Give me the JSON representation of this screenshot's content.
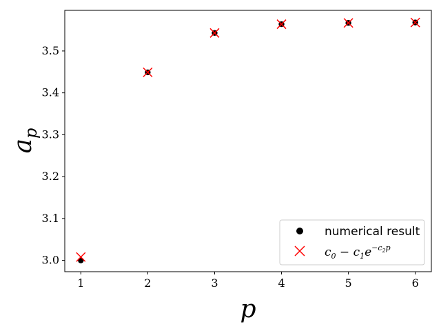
{
  "chart_data": {
    "type": "scatter",
    "xlabel": "p",
    "ylabel_base": "a",
    "ylabel_sub": "p",
    "xlim": [
      0.76,
      6.24
    ],
    "ylim": [
      2.973,
      3.597
    ],
    "xticks": [
      1,
      2,
      3,
      4,
      5,
      6
    ],
    "yticks": [
      3.0,
      3.1,
      3.2,
      3.3,
      3.4,
      3.5
    ],
    "ytick_labels": [
      "3.0",
      "3.1",
      "3.2",
      "3.3",
      "3.4",
      "3.5"
    ],
    "grid": false,
    "legend_position": "bottom-right",
    "series": [
      {
        "name": "numerical result",
        "marker": "circle",
        "color": "#000000",
        "x": [
          1,
          2,
          3,
          4,
          5,
          6
        ],
        "y": [
          3.0,
          3.449,
          3.543,
          3.564,
          3.567,
          3.568
        ]
      },
      {
        "name_parts": [
          "c",
          "0",
          " − c",
          "1",
          "e",
          "−c",
          "2",
          "p"
        ],
        "marker": "x",
        "color": "#ff0000",
        "x": [
          1,
          2,
          3,
          4,
          5,
          6
        ],
        "y": [
          3.008,
          3.449,
          3.543,
          3.564,
          3.567,
          3.568
        ]
      }
    ]
  }
}
